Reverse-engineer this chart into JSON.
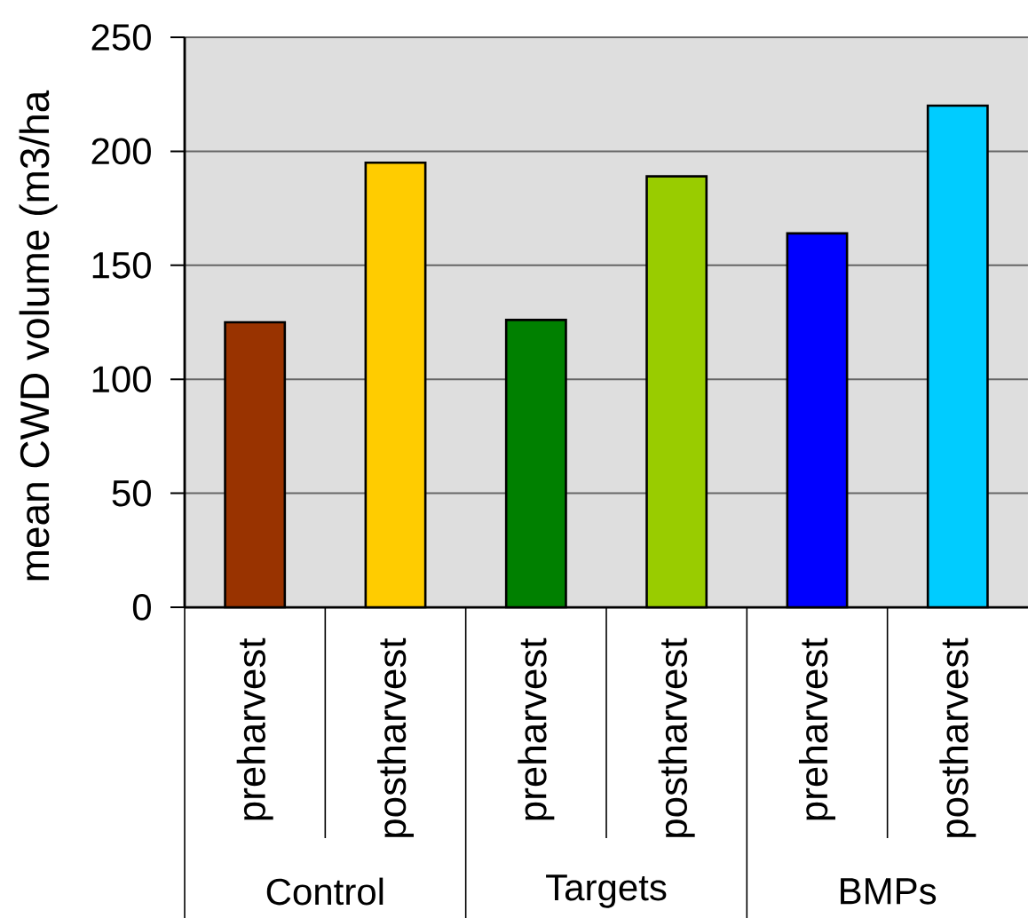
{
  "chart_data": {
    "type": "bar",
    "ylabel": "mean CWD volume (m3/ha",
    "categories": [
      "preharvest",
      "postharvest",
      "preharvest",
      "postharvest",
      "preharvest",
      "postharvest"
    ],
    "values": [
      125,
      195,
      126,
      189,
      164,
      220
    ],
    "colors": [
      "#993300",
      "#ffcc00",
      "#008000",
      "#99cc00",
      "#0000ff",
      "#00ccff"
    ],
    "ylim": [
      0,
      250
    ],
    "yticks": [
      0,
      50,
      100,
      150,
      200,
      250
    ],
    "grid": "y",
    "annotations": [
      "Control",
      "Targets",
      "BMPs"
    ]
  }
}
